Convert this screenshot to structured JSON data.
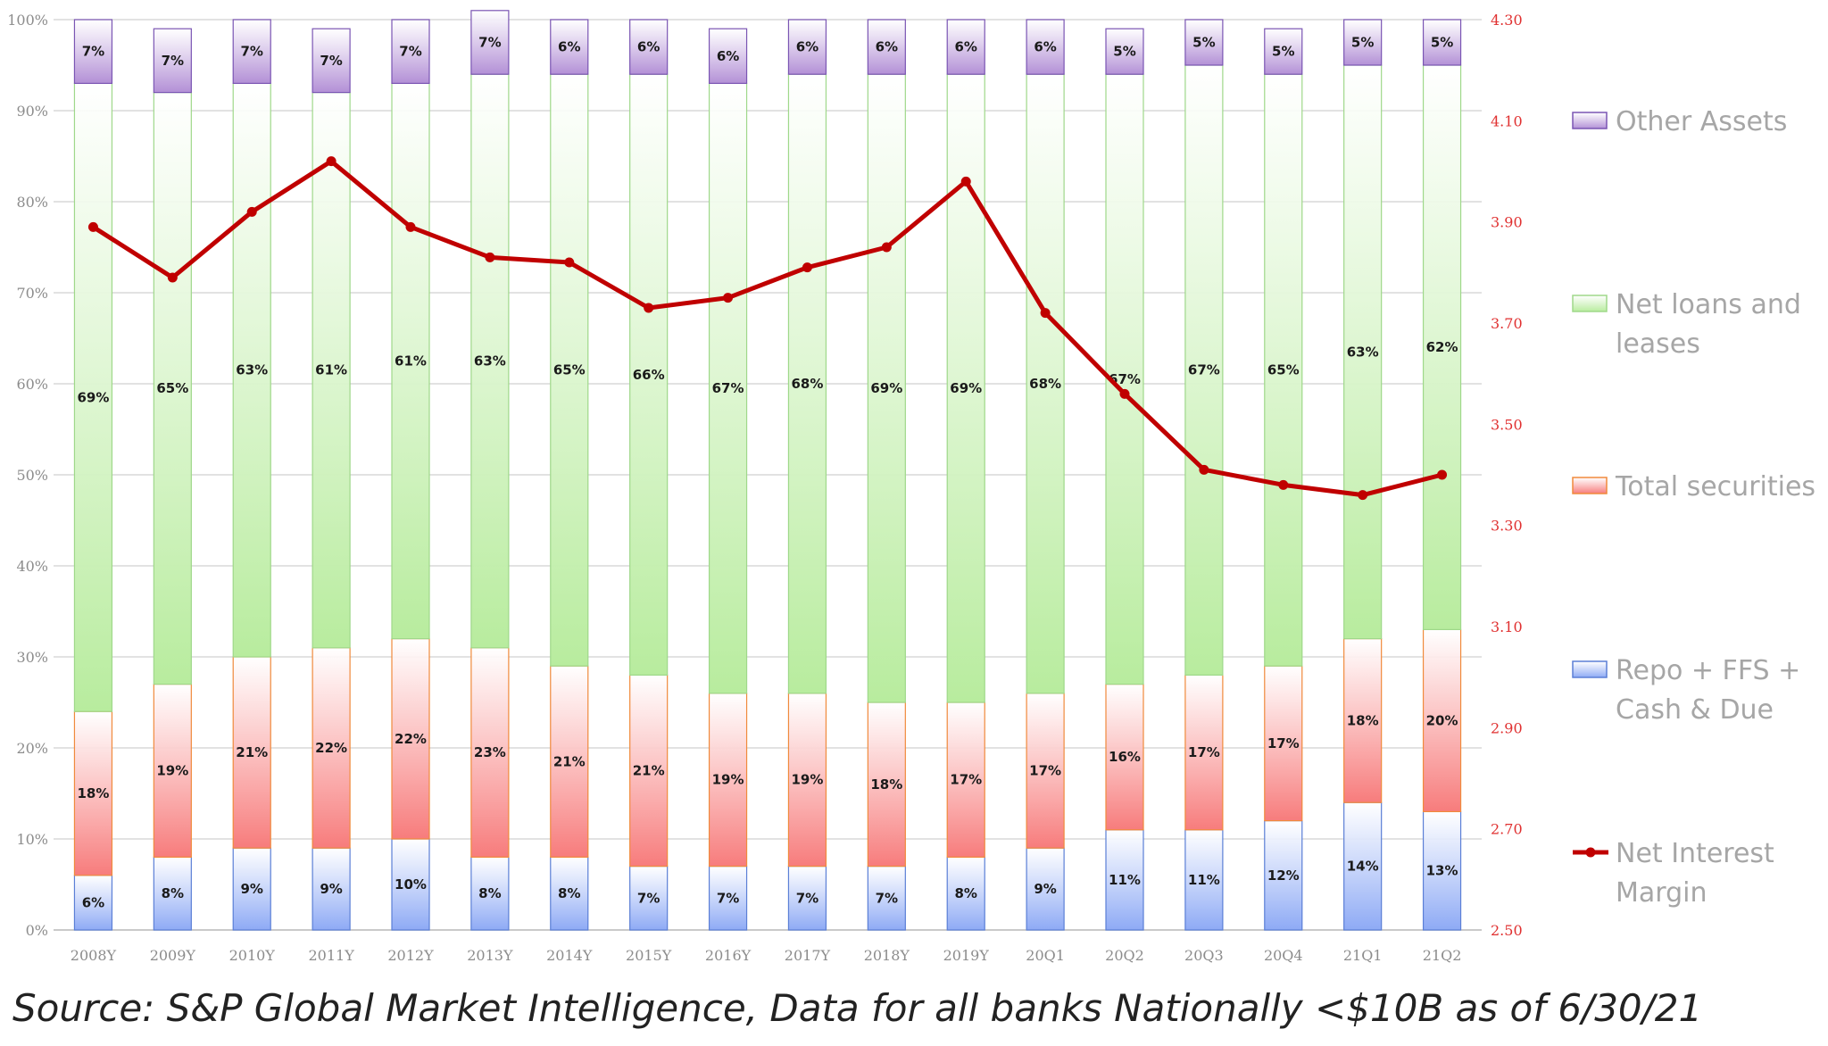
{
  "chart_data": {
    "type": "bar",
    "stacked": true,
    "categories": [
      "2008Y",
      "2009Y",
      "2010Y",
      "2011Y",
      "2012Y",
      "2013Y",
      "2014Y",
      "2015Y",
      "2016Y",
      "2017Y",
      "2018Y",
      "2019Y",
      "20Q1",
      "20Q2",
      "20Q3",
      "20Q4",
      "21Q1",
      "21Q2"
    ],
    "series": [
      {
        "name": "Repo + FFS + Cash & Due",
        "color": "#8eaaf5",
        "values": [
          6,
          8,
          9,
          9,
          10,
          8,
          8,
          7,
          7,
          7,
          7,
          8,
          9,
          11,
          11,
          12,
          14,
          13
        ],
        "labels": [
          "6%",
          "8%",
          "9%",
          "9%",
          "10%",
          "8%",
          "8%",
          "7%",
          "7%",
          "7%",
          "7%",
          "8%",
          "9%",
          "11%",
          "11%",
          "12%",
          "14%",
          "13%"
        ]
      },
      {
        "name": "Total securities",
        "color": "#f77c7c",
        "values": [
          18,
          19,
          21,
          22,
          22,
          23,
          21,
          21,
          19,
          19,
          18,
          17,
          17,
          16,
          17,
          17,
          18,
          20
        ],
        "labels": [
          "18%",
          "19%",
          "21%",
          "22%",
          "22%",
          "23%",
          "21%",
          "21%",
          "19%",
          "19%",
          "18%",
          "17%",
          "17%",
          "16%",
          "17%",
          "17%",
          "18%",
          "20%"
        ]
      },
      {
        "name": "Net loans and leases",
        "color": "#b8ec9e",
        "values": [
          69,
          65,
          63,
          61,
          61,
          63,
          65,
          66,
          67,
          68,
          69,
          69,
          68,
          67,
          67,
          65,
          63,
          62
        ],
        "labels": [
          "69%",
          "65%",
          "63%",
          "61%",
          "61%",
          "63%",
          "65%",
          "66%",
          "67%",
          "68%",
          "69%",
          "69%",
          "68%",
          "67%",
          "67%",
          "65%",
          "63%",
          "62%"
        ]
      },
      {
        "name": "Other Assets",
        "color": "#b390d6",
        "values": [
          7,
          7,
          7,
          7,
          7,
          7,
          6,
          6,
          6,
          6,
          6,
          6,
          6,
          5,
          5,
          5,
          5,
          5
        ],
        "labels": [
          "7%",
          "7%",
          "7%",
          "7%",
          "7%",
          "7%",
          "6%",
          "6%",
          "6%",
          "6%",
          "6%",
          "6%",
          "6%",
          "5%",
          "5%",
          "5%",
          "5%",
          "5%"
        ]
      }
    ],
    "line": {
      "name": "Net Interest Margin",
      "axis": "right",
      "color": "#c00000",
      "values": [
        3.89,
        3.79,
        3.92,
        4.02,
        3.89,
        3.83,
        3.82,
        3.73,
        3.75,
        3.81,
        3.85,
        3.98,
        3.72,
        3.56,
        3.41,
        3.38,
        3.36,
        3.4
      ]
    },
    "y_left": {
      "min": 0,
      "max": 100,
      "ticks": [
        "0%",
        "10%",
        "20%",
        "30%",
        "40%",
        "50%",
        "60%",
        "70%",
        "80%",
        "90%",
        "100%"
      ]
    },
    "y_right": {
      "min": 2.5,
      "max": 4.3,
      "ticks": [
        "2.50",
        "2.70",
        "2.90",
        "3.10",
        "3.30",
        "3.50",
        "3.70",
        "3.90",
        "4.10",
        "4.30"
      ]
    },
    "grid": true,
    "legend_position": "right",
    "legend": [
      {
        "label": "Other Assets",
        "color": "#b390d6",
        "kind": "box"
      },
      {
        "label": "Net loans and leases",
        "color": "#b8ec9e",
        "kind": "box"
      },
      {
        "label": "Total securities",
        "color": "#f77c7c",
        "kind": "box"
      },
      {
        "label": "Repo + FFS + Cash & Due",
        "color": "#8eaaf5",
        "kind": "box"
      },
      {
        "label": "Net Interest Margin",
        "color": "#c00000",
        "kind": "line"
      }
    ]
  },
  "source_note": "Source: S&P Global Market Intelligence, Data for all banks Nationally <$10B as of 6/30/21"
}
